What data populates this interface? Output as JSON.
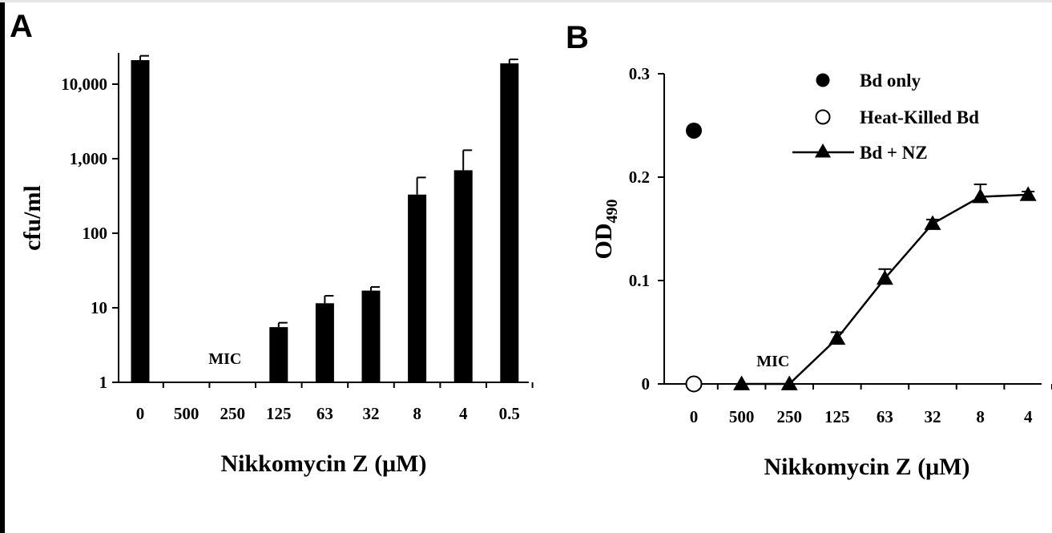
{
  "chart_data": [
    {
      "panel": "A",
      "type": "bar",
      "xlabel": "Nikkomycin Z (μM)",
      "ylabel": "cfu/ml",
      "y_scale": "log",
      "ylim": [
        1,
        30000
      ],
      "y_ticks": [
        1,
        10,
        100,
        1000,
        10000
      ],
      "y_tick_labels": [
        "1",
        "10",
        "100",
        "1,000",
        "10,000"
      ],
      "categories": [
        "0",
        "500",
        "250",
        "125",
        "63",
        "32",
        "8",
        "4",
        "0.5"
      ],
      "values": [
        21000,
        null,
        null,
        5.5,
        11.5,
        17,
        330,
        700,
        19000
      ],
      "errors": [
        3000,
        null,
        null,
        0.8,
        3,
        2,
        230,
        600,
        2500
      ],
      "annotation": {
        "text": "MIC",
        "near_category": "250"
      },
      "bar_color": "#000000"
    },
    {
      "panel": "B",
      "type": "line",
      "xlabel": "Nikkomycin Z (μM)",
      "ylabel_main": "OD",
      "ylabel_sub": "490",
      "ylim": [
        0,
        0.3
      ],
      "y_ticks": [
        0,
        0.1,
        0.2,
        0.3
      ],
      "y_tick_labels": [
        "0",
        "0.1",
        "0.2",
        "0.3"
      ],
      "categories": [
        "0",
        "500",
        "250",
        "125",
        "63",
        "32",
        "8",
        "4"
      ],
      "series": [
        {
          "name": "Bd only",
          "marker": "filled-circle",
          "line": false,
          "x": [
            "0"
          ],
          "values": [
            0.245
          ]
        },
        {
          "name": "Heat-Killed Bd",
          "marker": "open-circle",
          "line": false,
          "x": [
            "0"
          ],
          "values": [
            0.0
          ]
        },
        {
          "name": "Bd + NZ",
          "marker": "filled-triangle",
          "line": true,
          "x": [
            "500",
            "250",
            "125",
            "63",
            "32",
            "8",
            "4"
          ],
          "values": [
            0.0,
            0.0,
            0.044,
            0.102,
            0.155,
            0.181,
            0.183
          ],
          "errors": [
            0,
            0,
            0.006,
            0.009,
            0.004,
            0.012,
            0.003
          ]
        }
      ],
      "legend_placement": "top-right",
      "annotation": {
        "text": "MIC",
        "near_category": "250"
      }
    }
  ],
  "panels": {
    "a_label": "A",
    "b_label": "B"
  }
}
